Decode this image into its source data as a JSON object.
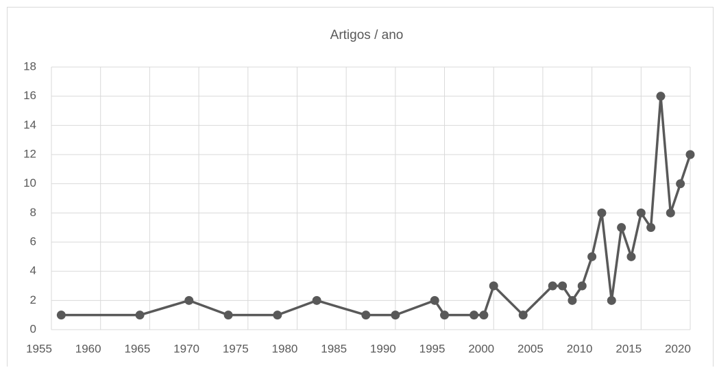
{
  "chart_data": {
    "type": "line",
    "title": "Artigos / ano",
    "x": [
      1956,
      1964,
      1969,
      1973,
      1978,
      1982,
      1987,
      1990,
      1994,
      1995,
      1998,
      1999,
      2000,
      2003,
      2006,
      2007,
      2008,
      2009,
      2010,
      2011,
      2012,
      2013,
      2014,
      2015,
      2016,
      2017,
      2018,
      2019,
      2020
    ],
    "series": [
      {
        "name": "Artigos",
        "color": "#595959",
        "values": [
          1,
          1,
          2,
          1,
          1,
          2,
          1,
          1,
          2,
          1,
          1,
          1,
          3,
          1,
          3,
          3,
          2,
          3,
          5,
          8,
          2,
          7,
          5,
          8,
          7,
          16,
          8,
          10,
          12
        ]
      }
    ],
    "xlim": [
      1955,
      2020
    ],
    "xticks": [
      1955,
      1960,
      1965,
      1970,
      1975,
      1980,
      1985,
      1990,
      1995,
      2000,
      2005,
      2010,
      2015,
      2020
    ],
    "ylim": [
      0,
      18
    ],
    "yticks": [
      0,
      2,
      4,
      6,
      8,
      10,
      12,
      14,
      16,
      18
    ],
    "grid": true
  }
}
